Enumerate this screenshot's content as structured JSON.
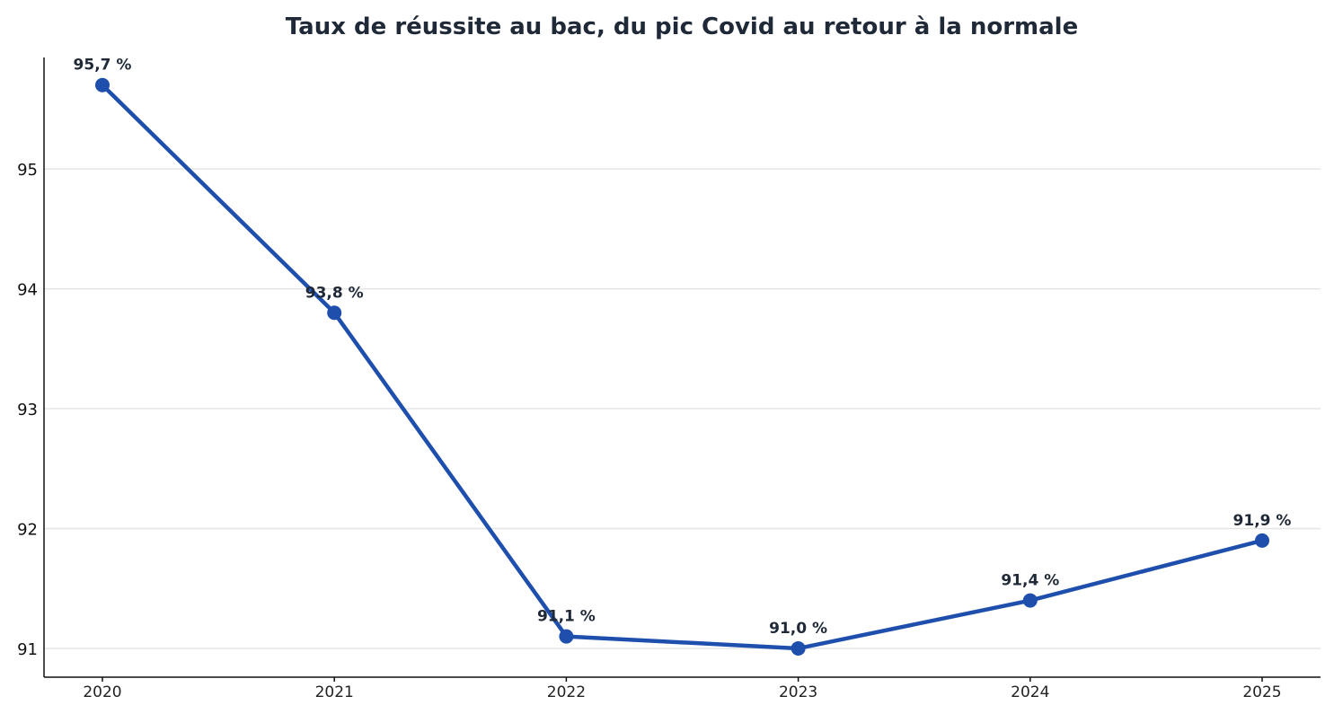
{
  "chart_data": {
    "type": "line",
    "title": "Taux de réussite au bac, du pic Covid au retour à la normale",
    "xlabel": "",
    "ylabel": "",
    "x": [
      "2020",
      "2021",
      "2022",
      "2023",
      "2024",
      "2025"
    ],
    "series": [
      {
        "values": [
          95.7,
          93.8,
          91.1,
          91.0,
          91.4,
          91.9
        ],
        "labels": [
          "95,7 %",
          "93,8 %",
          "91,1 %",
          "91,0 %",
          "91,4 %",
          "91,9 %"
        ],
        "color": "#1f4fad"
      }
    ],
    "yticks": [
      91,
      92,
      93,
      94,
      95
    ],
    "ylim": [
      90.76,
      95.93
    ],
    "grid": "horizontal",
    "legend": "none"
  }
}
